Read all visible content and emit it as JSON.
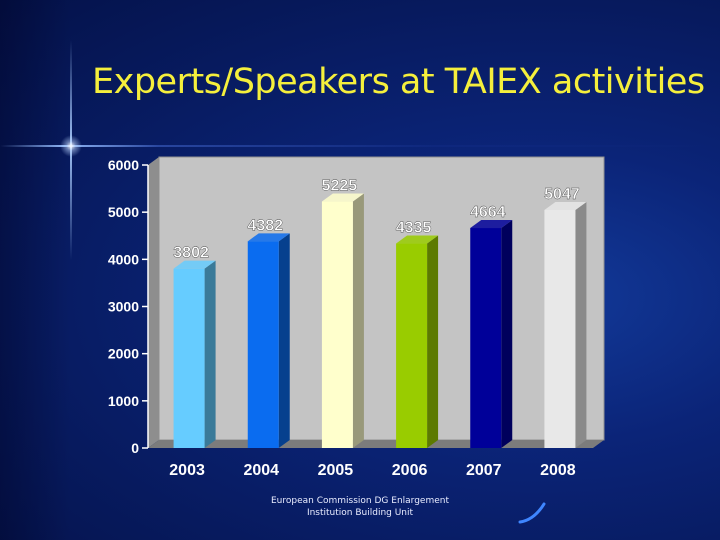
{
  "slide": {
    "title": "Experts/Speakers at TAIEX activities",
    "footer_line1": "European Commission  DG Enlargement",
    "footer_line2": "Institution Building Unit"
  },
  "chart_data": {
    "type": "bar",
    "title": "",
    "xlabel": "",
    "ylabel": "",
    "categories": [
      "2003",
      "2004",
      "2005",
      "2006",
      "2007",
      "2008"
    ],
    "values": [
      3802,
      4382,
      5225,
      4335,
      4664,
      5047
    ],
    "value_labels": [
      "3802",
      "4382",
      "5225",
      "4335",
      "4664",
      "5047"
    ],
    "yticks": [
      0,
      1000,
      2000,
      3000,
      4000,
      5000,
      6000
    ],
    "ylim": [
      0,
      6000
    ],
    "grid": false,
    "legend": "none",
    "colors": [
      "#66ccff",
      "#0a6cf0",
      "#ffffcc",
      "#99cc00",
      "#000099",
      "#e8e8e8"
    ],
    "side_colors": [
      "#3a7a99",
      "#06408e",
      "#99997a",
      "#5c7a00",
      "#00005c",
      "#8a8a8a"
    ],
    "wall_color": "#c4c4c4",
    "label_color": "#ffffff"
  }
}
